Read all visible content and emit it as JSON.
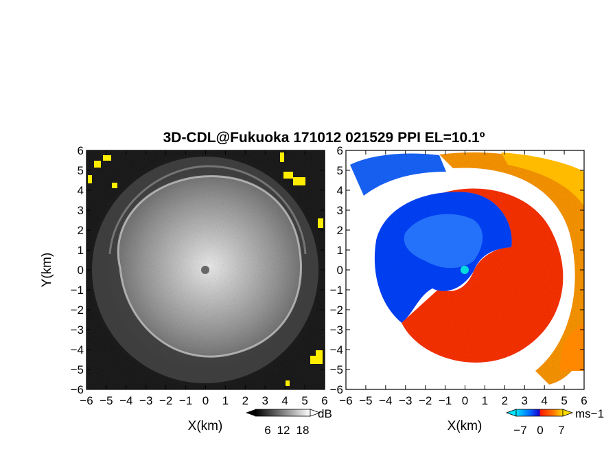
{
  "title": "3D-CDL@Fukuoka 171012 021529 PPI EL=10.1º",
  "chart_data": [
    {
      "type": "heatmap",
      "panel": "left",
      "xlabel": "X(km)",
      "ylabel": "Y(km)",
      "xlim": [
        -6,
        6
      ],
      "ylim": [
        -6,
        6
      ],
      "xticks": [
        "−6",
        "−5",
        "−4",
        "−3",
        "−2",
        "−1",
        "0",
        "1",
        "2",
        "3",
        "4",
        "5",
        "6"
      ],
      "yticks": [
        "6",
        "5",
        "4",
        "3",
        "2",
        "1",
        "0",
        "−1",
        "−2",
        "−3",
        "−4",
        "−5",
        "−6"
      ],
      "colorscale": [
        "#000000",
        "#ffffff"
      ],
      "colorbar": {
        "unit": "dB",
        "ticks": [
          "6",
          "12",
          "18"
        ],
        "range": [
          0,
          24
        ]
      }
    },
    {
      "type": "heatmap",
      "panel": "right",
      "xlabel": "X(km)",
      "ylabel": "",
      "xlim": [
        -6,
        6
      ],
      "ylim": [
        -6,
        6
      ],
      "xticks": [
        "−6",
        "−5",
        "−4",
        "−3",
        "−2",
        "−1",
        "0",
        "1",
        "2",
        "3",
        "4",
        "5",
        "6"
      ],
      "yticks": [
        "6",
        "5",
        "4",
        "3",
        "2",
        "1",
        "0",
        "−1",
        "−2",
        "−3",
        "−4",
        "−5",
        "−6"
      ],
      "colorscale": [
        "#00e5ff",
        "#0033ff",
        "#ff2200",
        "#ffcc00"
      ],
      "colorbar": {
        "unit": "ms−1",
        "ticks": [
          "−7",
          "0",
          "7"
        ],
        "range": [
          -10,
          10
        ]
      }
    }
  ]
}
